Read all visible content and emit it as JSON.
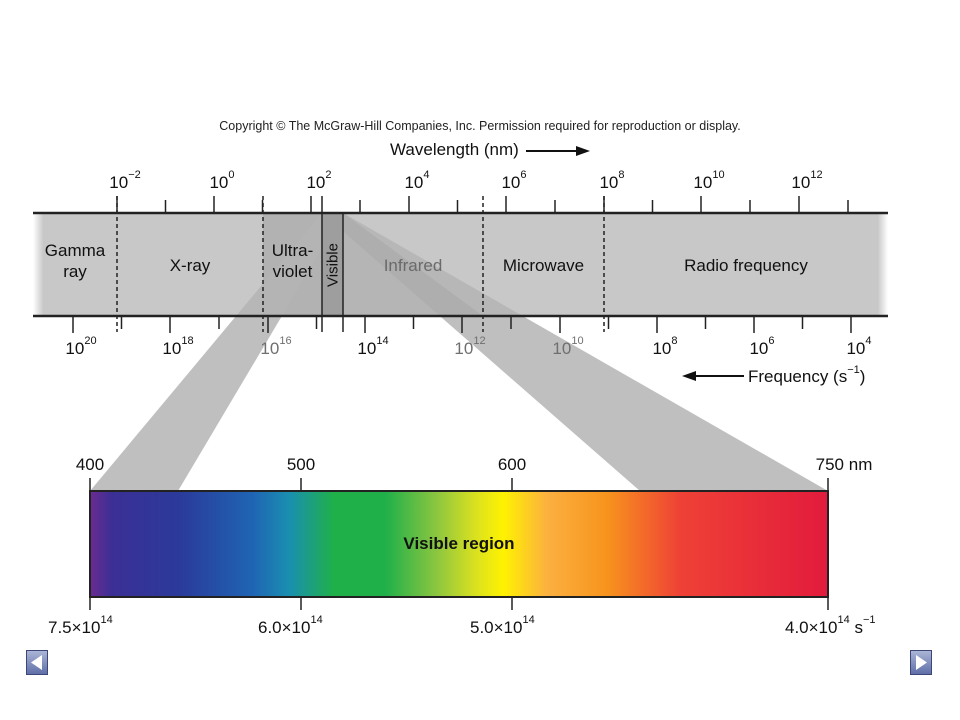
{
  "copyright": "Copyright © The McGraw-Hill Companies, Inc. Permission required for reproduction or display.",
  "wavelength_axis": {
    "title": "Wavelength (nm)",
    "tick_labels": [
      {
        "base": "10",
        "exp": "−2"
      },
      {
        "base": "10",
        "exp": "0"
      },
      {
        "base": "10",
        "exp": "2"
      },
      {
        "base": "10",
        "exp": "4"
      },
      {
        "base": "10",
        "exp": "6"
      },
      {
        "base": "10",
        "exp": "8"
      },
      {
        "base": "10",
        "exp": "10"
      },
      {
        "base": "10",
        "exp": "12"
      }
    ]
  },
  "frequency_axis": {
    "title_prefix": "Frequency (s",
    "title_exp": "−1",
    "title_suffix": ")",
    "tick_labels": [
      {
        "base": "10",
        "exp": "20"
      },
      {
        "base": "10",
        "exp": "18"
      },
      {
        "base": "10",
        "exp": "16"
      },
      {
        "base": "10",
        "exp": "14"
      },
      {
        "base": "10",
        "exp": "12"
      },
      {
        "base": "10",
        "exp": "10"
      },
      {
        "base": "10",
        "exp": "8"
      },
      {
        "base": "10",
        "exp": "6"
      },
      {
        "base": "10",
        "exp": "4"
      }
    ]
  },
  "bands": {
    "gamma_line1": "Gamma",
    "gamma_line2": "ray",
    "xray": "X-ray",
    "uv_line1": "Ultra-",
    "uv_line2": "violet",
    "visible": "Visible",
    "infrared": "Infrared",
    "microwave": "Microwave",
    "radio": "Radio frequency"
  },
  "visible_spectrum": {
    "label": "Visible region",
    "wavelength_ticks": [
      "400",
      "500",
      "600",
      "750 nm"
    ],
    "frequency_labels": [
      {
        "mant": "7.5×10",
        "exp": "14",
        "unit": ""
      },
      {
        "mant": "6.0×10",
        "exp": "14",
        "unit": ""
      },
      {
        "mant": "5.0×10",
        "exp": "14",
        "unit": ""
      },
      {
        "mant": "4.0×10",
        "exp": "14",
        "unit": " s",
        "unit_exp": "−1"
      }
    ]
  },
  "colors": {
    "band_fill": "#c8c8c8",
    "projection_fill": "#b9b9b9",
    "spectrum": [
      "#6b2c91",
      "#2b3a9a",
      "#1f64b4",
      "#1aa6a6",
      "#1fb04a",
      "#8cc63f",
      "#fff200",
      "#f7941d",
      "#ef4136",
      "#e21b3c"
    ]
  },
  "nav": {
    "prev": "previous-slide",
    "next": "next-slide"
  }
}
